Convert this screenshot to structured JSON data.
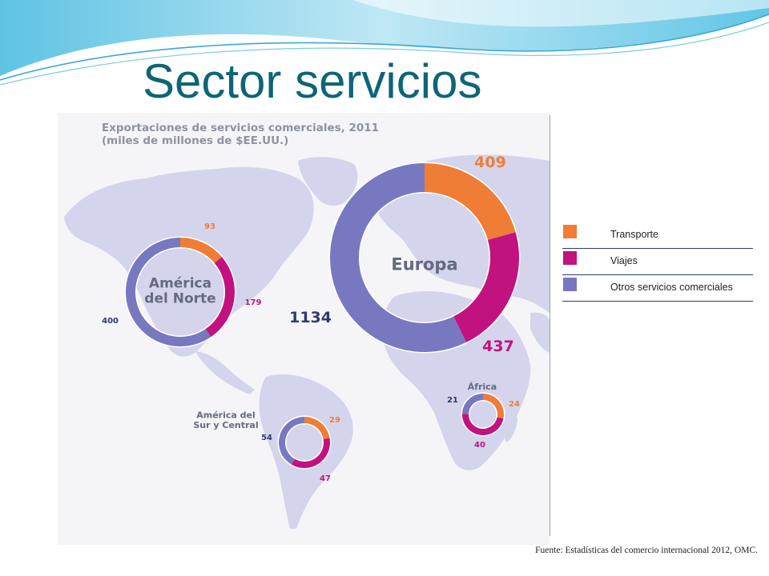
{
  "slide": {
    "title": "Sector servicios",
    "source": "Fuente: Estadísticas del comercio internacional 2012, OMC."
  },
  "colors": {
    "transport": "#ef7d36",
    "travel": "#c2127f",
    "other": "#7878c0",
    "title": "#0e6576",
    "map_land": "#d4d5ec"
  },
  "chart_data": {
    "type": "pie",
    "style": "donut",
    "title_lines": [
      "Exportaciones de servicios comerciales, 2011",
      "(miles de millones de $EE.UU.)"
    ],
    "categories": [
      "Transporte",
      "Viajes",
      "Otros servicios comerciales"
    ],
    "legend": {
      "position": "right"
    },
    "regions": [
      {
        "name": "América del Norte",
        "label_lines": [
          "América",
          "del Norte"
        ],
        "values": [
          93,
          179,
          400
        ]
      },
      {
        "name": "Europa",
        "label_lines": [
          "Europa"
        ],
        "values": [
          409,
          437,
          1134
        ]
      },
      {
        "name": "América del Sur y Central",
        "label_lines": [
          "América del",
          "Sur y Central"
        ],
        "values": [
          29,
          47,
          54
        ]
      },
      {
        "name": "África",
        "label_lines": [
          "África"
        ],
        "values": [
          24,
          40,
          21
        ]
      }
    ]
  }
}
